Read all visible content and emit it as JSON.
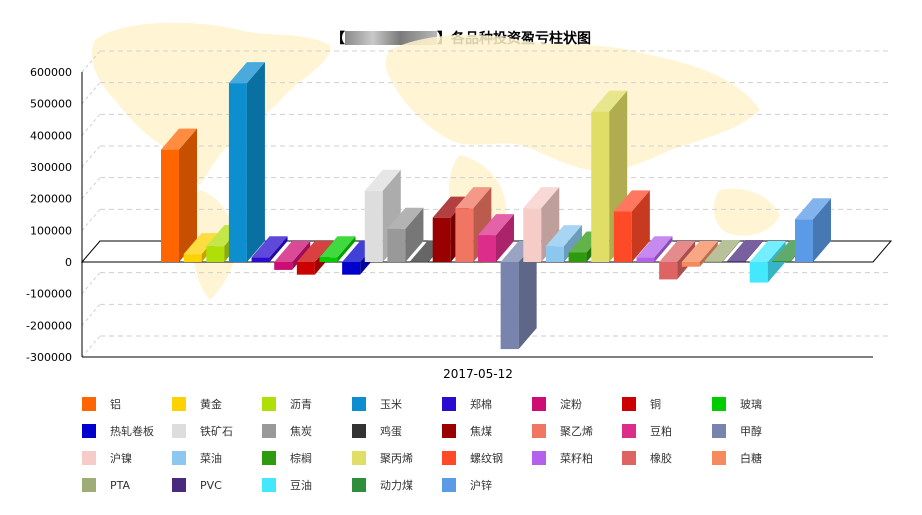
{
  "chart_data": {
    "type": "bar",
    "title_suffix": "各品种投资盈亏柱状图",
    "xlabel": "2017-05-12",
    "ylabel": "",
    "ylim": [
      -300000,
      600000
    ],
    "yticks": [
      600000,
      500000,
      400000,
      300000,
      200000,
      100000,
      0,
      -100000,
      -200000,
      -300000
    ],
    "grid": true,
    "legend_position": "bottom",
    "categories": [
      "2017-05-12"
    ],
    "series": [
      {
        "name": "铝",
        "color": "#FF6600",
        "value": 355000
      },
      {
        "name": "黄金",
        "color": "#FCD202",
        "value": 25000
      },
      {
        "name": "沥青",
        "color": "#B0DE09",
        "value": 50000
      },
      {
        "name": "玉米",
        "color": "#0D8ECF",
        "value": 565000
      },
      {
        "name": "郑棉",
        "color": "#2A0CD0",
        "value": 15000
      },
      {
        "name": "淀粉",
        "color": "#CD0D74",
        "value": -25000
      },
      {
        "name": "铜",
        "color": "#CC0000",
        "value": -40000
      },
      {
        "name": "玻璃",
        "color": "#00CC00",
        "value": 15000
      },
      {
        "name": "热轧卷板",
        "color": "#0000CC",
        "value": -40000
      },
      {
        "name": "铁矿石",
        "color": "#DDDDDD",
        "value": 225000
      },
      {
        "name": "焦炭",
        "color": "#999999",
        "value": 105000
      },
      {
        "name": "鸡蛋",
        "color": "#333333",
        "value": 2000
      },
      {
        "name": "焦煤",
        "color": "#990000",
        "value": 140000
      },
      {
        "name": "聚乙烯",
        "color": "#F07563",
        "value": 170000
      },
      {
        "name": "豆粕",
        "color": "#DB2D89",
        "value": 85000
      },
      {
        "name": "甲醇",
        "color": "#7884AE",
        "value": -275000
      },
      {
        "name": "沪镍",
        "color": "#F5CCC7",
        "value": 170000
      },
      {
        "name": "菜油",
        "color": "#8CC7F0",
        "value": 50000
      },
      {
        "name": "棕榈",
        "color": "#2E9A0E",
        "value": 30000
      },
      {
        "name": "聚丙烯",
        "color": "#E0DE66",
        "value": 475000
      },
      {
        "name": "螺纹钢",
        "color": "#FF4A28",
        "value": 160000
      },
      {
        "name": "菜籽粕",
        "color": "#B361EB",
        "value": 15000
      },
      {
        "name": "橡胶",
        "color": "#DE6464",
        "value": -55000
      },
      {
        "name": "白糖",
        "color": "#F58A5C",
        "value": -15000
      },
      {
        "name": "PTA",
        "color": "#A0AC78",
        "value": 3000
      },
      {
        "name": "PVC",
        "color": "#4B2A7D",
        "value": 3000
      },
      {
        "name": "豆油",
        "color": "#44E8FD",
        "value": -65000
      },
      {
        "name": "动力煤",
        "color": "#2E8E3B",
        "value": 3000
      },
      {
        "name": "沪锌",
        "color": "#5A9AE6",
        "value": 135000
      }
    ]
  }
}
